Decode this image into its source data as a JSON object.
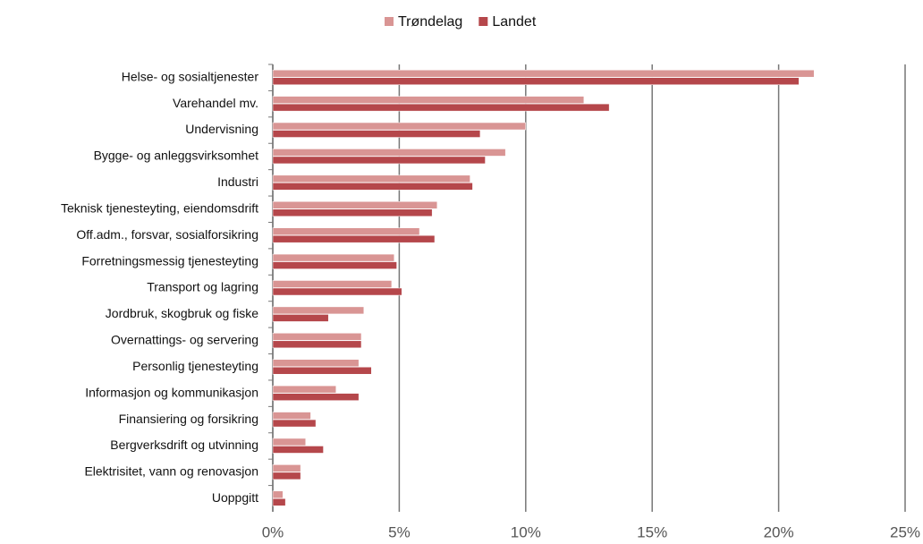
{
  "chart_data": {
    "type": "barh",
    "categories": [
      "Helse- og sosialtjenester",
      "Varehandel mv.",
      "Undervisning",
      "Bygge- og anleggsvirksomhet",
      "Industri",
      "Teknisk tjenesteyting, eiendomsdrift",
      "Off.adm., forsvar, sosialforsikring",
      "Forretningsmessig tjenesteyting",
      "Transport og lagring",
      "Jordbruk, skogbruk og fiske",
      "Overnattings- og servering",
      "Personlig tjenesteyting",
      "Informasjon og kommunikasjon",
      "Finansiering og forsikring",
      "Bergverksdrift og utvinning",
      "Elektrisitet, vann og renovasjon",
      "Uoppgitt"
    ],
    "series": [
      {
        "name": "Trøndelag",
        "color": "#d99594",
        "values": [
          21.4,
          12.3,
          10.0,
          9.2,
          7.8,
          6.5,
          5.8,
          4.8,
          4.7,
          3.6,
          3.5,
          3.4,
          2.5,
          1.5,
          1.3,
          1.1,
          0.4
        ]
      },
      {
        "name": "Landet",
        "color": "#b5474b",
        "values": [
          20.8,
          13.3,
          8.2,
          8.4,
          7.9,
          6.3,
          6.4,
          4.9,
          5.1,
          2.2,
          3.5,
          3.9,
          3.4,
          1.7,
          2.0,
          1.1,
          0.5
        ]
      }
    ],
    "xlim": [
      0,
      25
    ],
    "xticks": [
      {
        "value": 0,
        "label": "0%"
      },
      {
        "value": 5,
        "label": "5%"
      },
      {
        "value": 10,
        "label": "10%"
      },
      {
        "value": 15,
        "label": "15%"
      },
      {
        "value": 20,
        "label": "20%"
      },
      {
        "value": 25,
        "label": "25%"
      }
    ],
    "grid": true,
    "legend": "top"
  }
}
